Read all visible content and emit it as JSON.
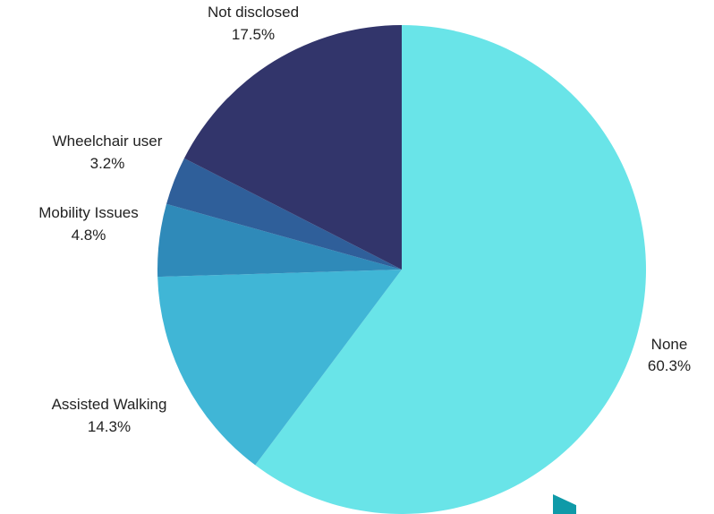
{
  "chart_data": {
    "type": "pie",
    "title": "",
    "start_angle_deg": 0,
    "direction": "clockwise",
    "slices": [
      {
        "label": "None",
        "percent_label": "60.3%",
        "value": 60.3,
        "color": "#69e4e8"
      },
      {
        "label": "Assisted Walking",
        "percent_label": "14.3%",
        "value": 14.3,
        "color": "#40b6d6"
      },
      {
        "label": "Mobility Issues",
        "percent_label": "4.8%",
        "value": 4.8,
        "color": "#2f8ab9"
      },
      {
        "label": "Wheelchair user",
        "percent_label": "3.2%",
        "value": 3.2,
        "color": "#2f5f9a"
      },
      {
        "label": "Not disclosed",
        "percent_label": "17.5%",
        "value": 17.5,
        "color": "#32356b"
      }
    ]
  },
  "decor": {
    "corner_mark_color": "#0f9aa8"
  }
}
